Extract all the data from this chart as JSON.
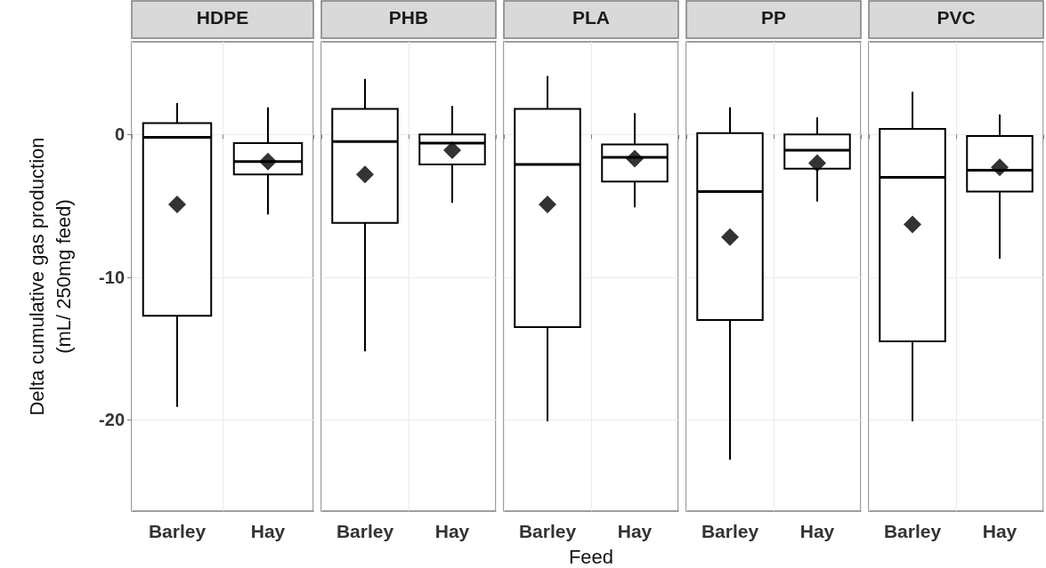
{
  "chart_data": [
    {
      "type": "box",
      "title": "HDPE",
      "ylabel": "Delta cumulative gas production\n(mL/ 250mg feed)",
      "categories": [
        "Barley",
        "Hay"
      ],
      "ylim": [
        -26.4,
        6.5
      ],
      "yticks": [
        -20,
        -10,
        0
      ],
      "grid": true,
      "marker": "diamond",
      "color": "#000000",
      "boxes": [
        {
          "low": -19.1,
          "q1": -12.7,
          "median": -0.2,
          "q3": 0.8,
          "high": 2.2,
          "mean": -4.9
        },
        {
          "low": -5.6,
          "q1": -2.8,
          "median": -1.9,
          "q3": -0.6,
          "high": 1.9,
          "mean": -1.9
        }
      ]
    },
    {
      "type": "box",
      "title": "PHB",
      "categories": [
        "Barley",
        "Hay"
      ],
      "ylim": [
        -26.4,
        6.5
      ],
      "yticks": [
        -20,
        -10,
        0
      ],
      "tick_labels": "x",
      "grid": true,
      "marker": "diamond",
      "color": "#000000",
      "boxes": [
        {
          "low": -15.2,
          "q1": -6.2,
          "median": -0.5,
          "q3": 1.8,
          "high": 3.9,
          "mean": -2.8
        },
        {
          "low": -4.8,
          "q1": -2.1,
          "median": -0.6,
          "q3": 0.0,
          "high": 2.0,
          "mean": -1.1
        }
      ]
    },
    {
      "type": "box",
      "title": "PLA",
      "xlabel": "Feed",
      "categories": [
        "Barley",
        "Hay"
      ],
      "ylim": [
        -26.4,
        6.5
      ],
      "yticks": [
        -20,
        -10,
        0
      ],
      "tick_labels": "x",
      "grid": true,
      "marker": "diamond",
      "color": "#000000",
      "boxes": [
        {
          "low": -20.1,
          "q1": -13.5,
          "median": -2.1,
          "q3": 1.8,
          "high": 4.1,
          "mean": -4.9
        },
        {
          "low": -5.1,
          "q1": -3.3,
          "median": -1.6,
          "q3": -0.7,
          "high": 1.5,
          "mean": -1.7
        }
      ]
    },
    {
      "type": "box",
      "title": "PP",
      "categories": [
        "Barley",
        "Hay"
      ],
      "ylim": [
        -26.4,
        6.5
      ],
      "yticks": [
        -20,
        -10,
        0
      ],
      "tick_labels": "x",
      "grid": true,
      "marker": "diamond",
      "color": "#000000",
      "boxes": [
        {
          "low": -22.8,
          "q1": -13.0,
          "median": -4.0,
          "q3": 0.1,
          "high": 1.9,
          "mean": -7.2
        },
        {
          "low": -4.7,
          "q1": -2.4,
          "median": -1.1,
          "q3": 0.0,
          "high": 1.2,
          "mean": -2.0
        }
      ]
    },
    {
      "type": "box",
      "title": "PVC",
      "categories": [
        "Barley",
        "Hay"
      ],
      "ylim": [
        -26.4,
        6.5
      ],
      "yticks": [
        -20,
        -10,
        0
      ],
      "tick_labels": "x",
      "grid": true,
      "marker": "diamond",
      "color": "#000000",
      "boxes": [
        {
          "low": -20.1,
          "q1": -14.5,
          "median": -3.0,
          "q3": 0.4,
          "high": 3.0,
          "mean": -6.3
        },
        {
          "low": -8.7,
          "q1": -4.0,
          "median": -2.5,
          "q3": -0.1,
          "high": 1.4,
          "mean": -2.3
        }
      ]
    }
  ]
}
